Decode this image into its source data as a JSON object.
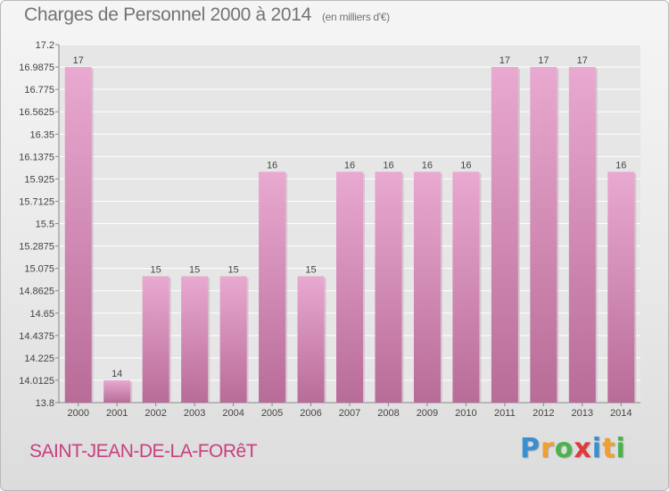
{
  "header": {
    "title": "Charges de Personnel 2000 à 2014",
    "subtitle": "(en milliers d'€)"
  },
  "footer": {
    "location": "SAINT-JEAN-DE-LA-FORêT",
    "brand_letters": [
      {
        "ch": "P",
        "color": "#3a8fd0"
      },
      {
        "ch": "r",
        "color": "#f0a030"
      },
      {
        "ch": "o",
        "color": "#4bb34b"
      },
      {
        "ch": "x",
        "color": "#e03a3a"
      },
      {
        "ch": "i",
        "color": "#3a8fd0"
      },
      {
        "ch": "t",
        "color": "#f0a030"
      },
      {
        "ch": "i",
        "color": "#4bb34b"
      }
    ]
  },
  "chart_data": {
    "type": "bar",
    "categories": [
      "2000",
      "2001",
      "2002",
      "2003",
      "2004",
      "2005",
      "2006",
      "2007",
      "2008",
      "2009",
      "2010",
      "2011",
      "2012",
      "2013",
      "2014"
    ],
    "values": [
      17,
      14,
      15,
      15,
      15,
      16,
      15,
      16,
      16,
      16,
      16,
      17,
      17,
      17,
      16
    ],
    "plot_values": [
      16.9875,
      14.0125,
      15.0,
      15.0,
      15.0,
      15.9925,
      15.0,
      15.9925,
      15.9925,
      15.9925,
      15.9925,
      16.9875,
      16.9875,
      16.9875,
      15.9925
    ],
    "ylim": [
      13.8,
      17.2
    ],
    "yticks": [
      "13.8",
      "14.0125",
      "14.225",
      "14.4375",
      "14.65",
      "14.8625",
      "15.075",
      "15.2875",
      "15.5",
      "15.7125",
      "15.925",
      "16.1375",
      "16.35",
      "16.5625",
      "16.775",
      "16.9875",
      "17.2"
    ],
    "bar_color": "#d98ab7",
    "grid": true,
    "title": "Charges de Personnel 2000 à 2014",
    "xlabel": "",
    "ylabel": ""
  }
}
